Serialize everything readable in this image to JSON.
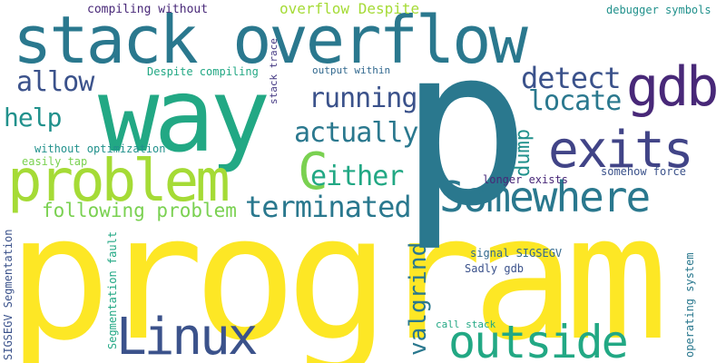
{
  "background": "#ffffff",
  "words": [
    {
      "text": "program",
      "color": "#fde725"
    },
    {
      "text": "p",
      "color": "#2a788e"
    },
    {
      "text": "way",
      "color": "#22a884"
    },
    {
      "text": "stack overflow",
      "color": "#2a788e"
    },
    {
      "text": "problem",
      "color": "#a5db36"
    },
    {
      "text": "Somewhere",
      "color": "#2a788e"
    },
    {
      "text": "exits",
      "color": "#414487"
    },
    {
      "text": "gdb",
      "color": "#482878"
    },
    {
      "text": "outside",
      "color": "#22a884"
    },
    {
      "text": "Linux",
      "color": "#3b528b"
    },
    {
      "text": "C",
      "color": "#7ad151"
    },
    {
      "text": "terminated",
      "color": "#2a788e"
    },
    {
      "text": "detect",
      "color": "#3b528b"
    },
    {
      "text": "locate",
      "color": "#2a788e"
    },
    {
      "text": "running",
      "color": "#3b528b"
    },
    {
      "text": "actually",
      "color": "#2a788e"
    },
    {
      "text": "either",
      "color": "#22a884"
    },
    {
      "text": "allow",
      "color": "#3b528b"
    },
    {
      "text": "help",
      "color": "#21918c"
    },
    {
      "text": "valgrind",
      "color": "#2a788e"
    },
    {
      "text": "dump",
      "color": "#21918c"
    },
    {
      "text": "following problem",
      "color": "#7ad151"
    },
    {
      "text": "overflow Despite",
      "color": "#a5db36"
    },
    {
      "text": "compiling without",
      "color": "#482878"
    },
    {
      "text": "debugger symbols",
      "color": "#21918c"
    },
    {
      "text": "Despite compiling",
      "color": "#22a884"
    },
    {
      "text": "output within",
      "color": "#31688e"
    },
    {
      "text": "without optimization",
      "color": "#21918c"
    },
    {
      "text": "easily tap",
      "color": "#7ad151"
    },
    {
      "text": "longer exists",
      "color": "#482878"
    },
    {
      "text": "somehow force",
      "color": "#3b528b"
    },
    {
      "text": "signal SIGSEGV",
      "color": "#31688e"
    },
    {
      "text": "Sadly gdb",
      "color": "#3b528b"
    },
    {
      "text": "call stack",
      "color": "#22a884"
    },
    {
      "text": "stack trace",
      "color": "#443983"
    },
    {
      "text": "SIGSEGV Segmentation",
      "color": "#3b528b"
    },
    {
      "text": "Segmentation fault",
      "color": "#22a884"
    },
    {
      "text": "operating system",
      "color": "#2a788e"
    }
  ]
}
